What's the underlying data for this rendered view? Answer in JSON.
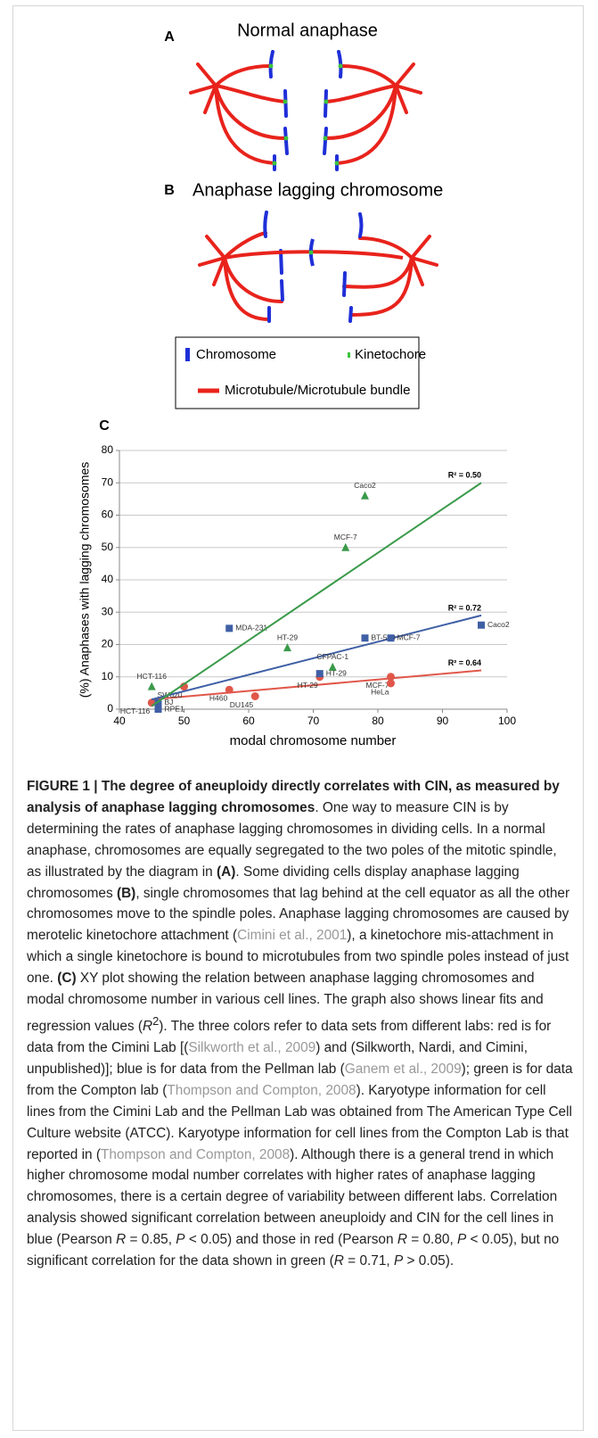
{
  "panel_a": {
    "label": "A",
    "title": "Normal anaphase"
  },
  "panel_b": {
    "label": "B",
    "title": "Anaphase lagging chromosome"
  },
  "legend": {
    "items": [
      "Chromosome",
      "Kinetochore",
      "Microtubule/Microtubule bundle"
    ]
  },
  "chart_data": {
    "type": "scatter",
    "panel_label": "C",
    "y_label": "(%) Anaphases with lagging chromosomes",
    "x_label": "modal chromosome number",
    "xlim": [
      40,
      100
    ],
    "xticks": [
      40,
      50,
      60,
      70,
      80,
      90,
      100
    ],
    "ylim": [
      0,
      80
    ],
    "yticks": [
      0,
      10,
      20,
      30,
      40,
      50,
      60,
      70,
      80
    ],
    "grid": true,
    "series": [
      {
        "color": "#e0574a",
        "marker": "circle",
        "x": [
          45,
          50,
          57,
          61,
          71,
          82,
          82
        ],
        "values": [
          2,
          7,
          6,
          4,
          10,
          10,
          8
        ],
        "labels": [
          "HCT-116",
          "SW620",
          "H460",
          "DU145",
          "HT-29",
          "MCF-7",
          "HeLa"
        ],
        "fit": {
          "x": [
            45,
            96
          ],
          "y": [
            3,
            12
          ]
        },
        "fit_label": "R² = 0.64"
      },
      {
        "color": "#3f5fa5",
        "marker": "square",
        "x": [
          46,
          46,
          57,
          71,
          78,
          82,
          96
        ],
        "values": [
          2,
          0,
          25,
          11,
          22,
          22,
          26
        ],
        "labels": [
          "BJ",
          "RPE1",
          "MDA-231",
          "HT-29",
          "BT-549",
          "MCF-7",
          "Caco2"
        ],
        "fit": {
          "x": [
            45,
            96
          ],
          "y": [
            3,
            29
          ]
        },
        "fit_label": "R² = 0.72"
      },
      {
        "color": "#3a9a4a",
        "marker": "triangle",
        "x": [
          45,
          66,
          73,
          75,
          78
        ],
        "values": [
          7,
          19,
          13,
          50,
          66
        ],
        "labels": [
          "HCT-116",
          "HT-29",
          "CFPAC-1",
          "MCF-7",
          "Caco2"
        ],
        "fit": {
          "x": [
            45,
            96
          ],
          "y": [
            1,
            70
          ]
        },
        "fit_label": "R² = 0.50"
      }
    ]
  },
  "caption": [
    {
      "text": "FIGURE 1 | The degree of aneuploidy directly correlates with CIN, as measured by analysis of anaphase lagging chromosomes",
      "style": "bold"
    },
    {
      "text": ". One way to measure CIN is by determining the rates of anaphase lagging chromosomes in dividing cells. In a normal anaphase, chromosomes are equally segregated to the two poles of the mitotic spindle, as illustrated by the diagram in "
    },
    {
      "text": "(A)",
      "style": "bold"
    },
    {
      "text": ". Some dividing cells display anaphase lagging chromosomes "
    },
    {
      "text": "(B)",
      "style": "bold"
    },
    {
      "text": ", single chromosomes that lag behind at the cell equator as all the other chromosomes move to the spindle poles. Anaphase lagging chromosomes are caused by merotelic kinetochore attachment ("
    },
    {
      "text": "Cimini et al., 2001",
      "style": "link"
    },
    {
      "text": "), a kinetochore mis-attachment in which a single kinetochore is bound to microtubules from two spindle poles instead of just one. "
    },
    {
      "text": "(C)",
      "style": "bold"
    },
    {
      "text": " XY plot showing the relation between anaphase lagging chromosomes and modal chromosome number in various cell lines. The graph also shows linear fits and regression values ("
    },
    {
      "text": "R",
      "style": "italic"
    },
    {
      "text": "2",
      "style": "sup"
    },
    {
      "text": "). The three colors refer to data sets from different labs: red is for data from the Cimini Lab [("
    },
    {
      "text": "Silkworth et al., 2009",
      "style": "link"
    },
    {
      "text": ") and (Silkworth, Nardi, and Cimini, unpublished)]; blue is for data from the Pellman lab ("
    },
    {
      "text": "Ganem et al., 2009",
      "style": "link"
    },
    {
      "text": "); green is for data from the Compton lab ("
    },
    {
      "text": "Thompson and Compton, 2008",
      "style": "link"
    },
    {
      "text": "). Karyotype information for cell lines from the Cimini Lab and the Pellman Lab was obtained from The American Type Cell Culture website (ATCC). Karyotype information for cell lines from the Compton Lab is that reported in ("
    },
    {
      "text": "Thompson and Compton, 2008",
      "style": "link"
    },
    {
      "text": "). Although there is a general trend in which higher chromosome modal number correlates with higher rates of anaphase lagging chromosomes, there is a certain degree of variability between different labs. Correlation analysis showed significant correlation between aneuploidy and CIN for the cell lines in blue (Pearson "
    },
    {
      "text": "R",
      "style": "italic"
    },
    {
      "text": " = 0.85, "
    },
    {
      "text": "P",
      "style": "italic"
    },
    {
      "text": " < 0.05) and those in red (Pearson "
    },
    {
      "text": "R",
      "style": "italic"
    },
    {
      "text": " = 0.80, "
    },
    {
      "text": "P",
      "style": "italic"
    },
    {
      "text": " < 0.05), but no significant correlation for the data shown in green ("
    },
    {
      "text": "R",
      "style": "italic"
    },
    {
      "text": " = 0.71, "
    },
    {
      "text": "P",
      "style": "italic"
    },
    {
      "text": " > 0.05)."
    }
  ]
}
